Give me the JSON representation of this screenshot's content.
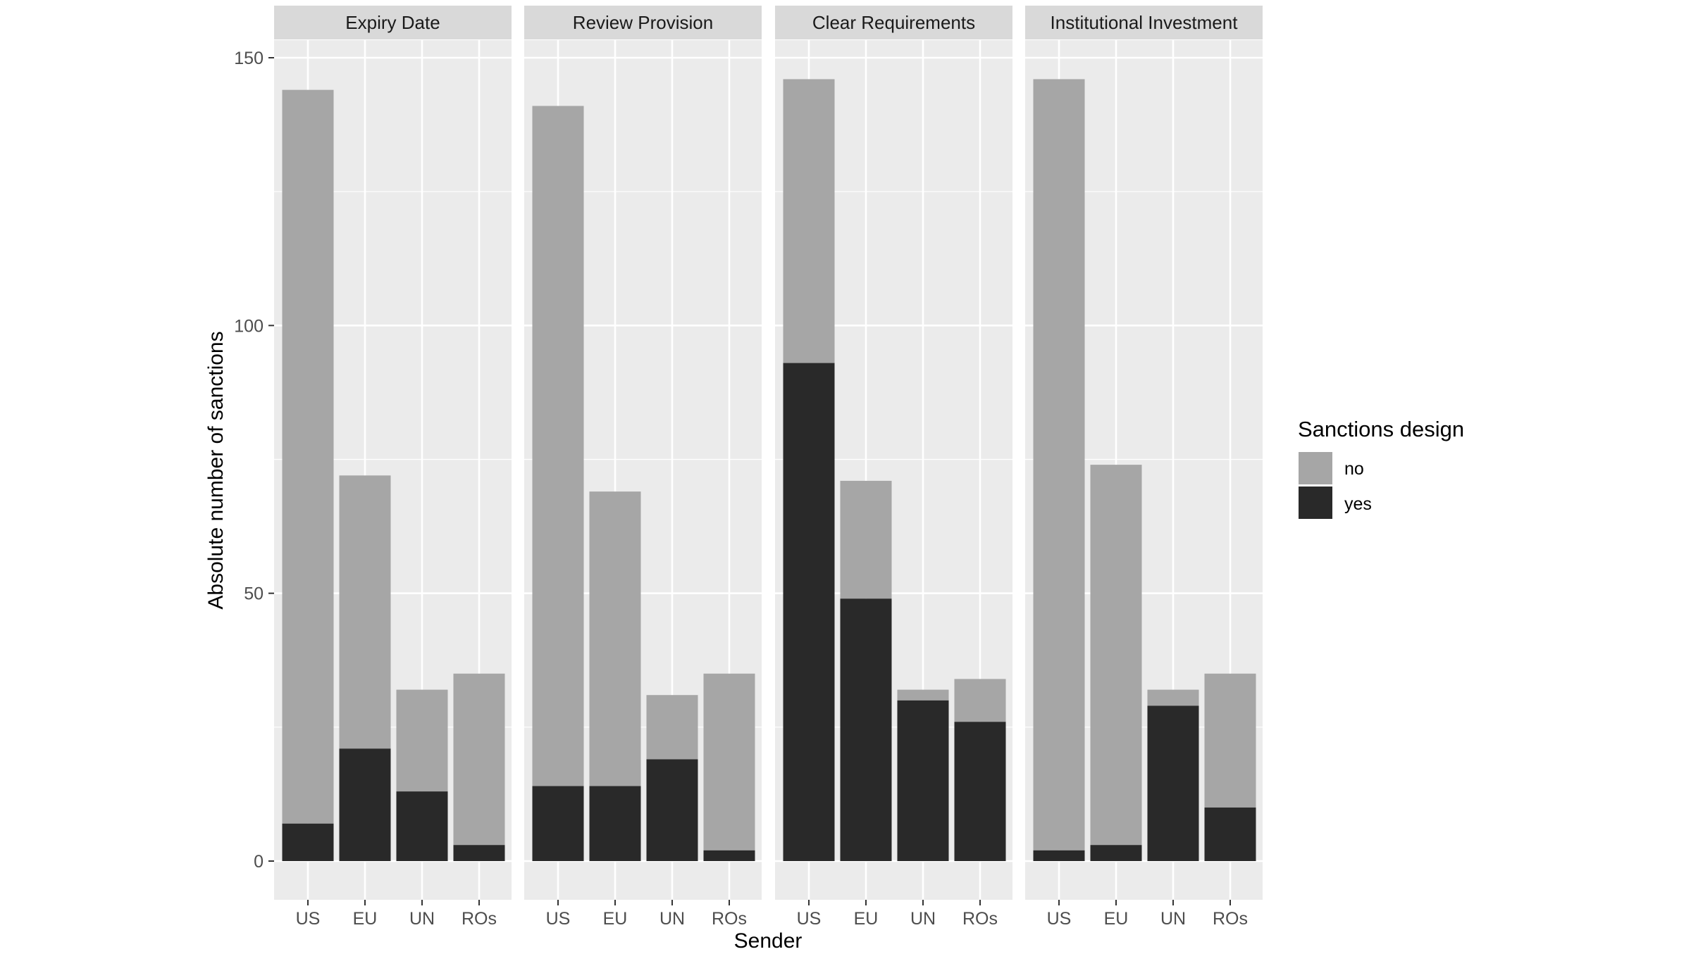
{
  "chart_data": {
    "type": "bar",
    "stacked": true,
    "facets": [
      "Expiry Date",
      "Review Provision",
      "Clear Requirements",
      "Institutional Investment"
    ],
    "categories": [
      "US",
      "EU",
      "UN",
      "ROs"
    ],
    "xlabel": "Sender",
    "ylabel": "Absolute number of sanctions",
    "ylim": [
      0,
      157
    ],
    "yticks": [
      0,
      50,
      100,
      150
    ],
    "grid": true,
    "legend": {
      "title": "Sanctions design",
      "placement": "right",
      "entries": [
        {
          "label": "no",
          "color": "#a6a6a6"
        },
        {
          "label": "yes",
          "color": "#292929"
        }
      ]
    },
    "panels": [
      {
        "facet": "Expiry Date",
        "series": [
          {
            "name": "yes",
            "values": [
              7,
              21,
              13,
              3
            ]
          },
          {
            "name": "no",
            "values": [
              137,
              51,
              19,
              32
            ]
          }
        ]
      },
      {
        "facet": "Review Provision",
        "series": [
          {
            "name": "yes",
            "values": [
              14,
              14,
              19,
              2
            ]
          },
          {
            "name": "no",
            "values": [
              127,
              55,
              12,
              33
            ]
          }
        ]
      },
      {
        "facet": "Clear Requirements",
        "series": [
          {
            "name": "yes",
            "values": [
              93,
              49,
              30,
              26
            ]
          },
          {
            "name": "no",
            "values": [
              53,
              22,
              2,
              8
            ]
          }
        ]
      },
      {
        "facet": "Institutional Investment",
        "series": [
          {
            "name": "yes",
            "values": [
              2,
              3,
              29,
              10
            ]
          },
          {
            "name": "no",
            "values": [
              144,
              71,
              3,
              25
            ]
          }
        ]
      }
    ]
  },
  "colors": {
    "panel_bg": "#ebebeb",
    "strip_bg": "#d9d9d9",
    "grid": "#ffffff",
    "no": "#a6a6a6",
    "yes": "#292929"
  }
}
